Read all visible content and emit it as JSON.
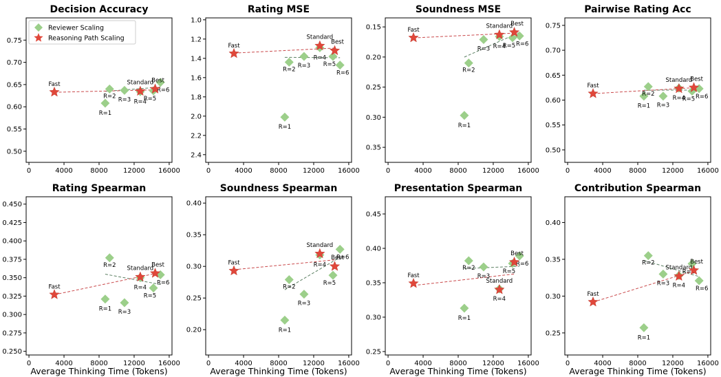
{
  "figure": {
    "xlabel": "Average Thinking Time (Tokens)"
  },
  "legend": {
    "reviewer": "Reviewer Scaling",
    "reasoning": "Reasoning Path Scaling"
  },
  "colors": {
    "reviewer": "#9ccf8a",
    "reasoning": "#e0473a",
    "reviewer_line": "#5b7f62",
    "reasoning_line": "#c9484a"
  },
  "chart_data": [
    {
      "type": "scatter",
      "title": "Decision Accuracy",
      "invert_y": false,
      "xlim": [
        0,
        16000
      ],
      "ylim": [
        0.475,
        0.8
      ],
      "xticks": [
        0,
        4000,
        8000,
        12000,
        16000
      ],
      "yticks": [
        0.5,
        0.55,
        0.6,
        0.65,
        0.7,
        0.75
      ],
      "ytick_labels": [
        "0.50",
        "0.55",
        "0.60",
        "0.65",
        "0.70",
        "0.75"
      ],
      "legend": "upper left",
      "series": [
        {
          "name": "Reviewer Scaling",
          "marker": "diamond",
          "points": [
            {
              "x": 8700,
              "y": 0.608,
              "label": "R=1"
            },
            {
              "x": 9200,
              "y": 0.64,
              "label": "R=2"
            },
            {
              "x": 10900,
              "y": 0.637,
              "label": "R=3"
            },
            {
              "x": 12700,
              "y": 0.634,
              "label": "R=4"
            },
            {
              "x": 14200,
              "y": 0.636,
              "label": "R=5"
            },
            {
              "x": 15000,
              "y": 0.655,
              "label": "R=6"
            }
          ]
        },
        {
          "name": "Reasoning Path Scaling",
          "marker": "star",
          "points": [
            {
              "x": 2900,
              "y": 0.633,
              "label": "Fast"
            },
            {
              "x": 12700,
              "y": 0.635,
              "label": "Standard"
            },
            {
              "x": 14400,
              "y": 0.64,
              "label": "Best"
            }
          ]
        }
      ]
    },
    {
      "type": "scatter",
      "title": "Rating MSE",
      "invert_y": true,
      "xlim": [
        0,
        16000
      ],
      "ylim": [
        0.98,
        2.48
      ],
      "xticks": [
        0,
        4000,
        8000,
        12000,
        16000
      ],
      "yticks": [
        1.0,
        1.2,
        1.4,
        1.6,
        1.8,
        2.0,
        2.2,
        2.4
      ],
      "ytick_labels": [
        "1.0",
        "1.2",
        "1.4",
        "1.6",
        "1.8",
        "2.0",
        "2.2",
        "2.4"
      ],
      "series": [
        {
          "name": "Reviewer Scaling",
          "marker": "diamond",
          "points": [
            {
              "x": 8700,
              "y": 2.01,
              "label": "R=1"
            },
            {
              "x": 9200,
              "y": 1.44,
              "label": "R=2"
            },
            {
              "x": 10900,
              "y": 1.38,
              "label": "R=3"
            },
            {
              "x": 12700,
              "y": 1.29,
              "label": "R=4"
            },
            {
              "x": 14200,
              "y": 1.38,
              "label": "R=5"
            },
            {
              "x": 15000,
              "y": 1.47,
              "label": "R=6"
            }
          ]
        },
        {
          "name": "Reasoning Path Scaling",
          "marker": "star",
          "points": [
            {
              "x": 2900,
              "y": 1.35,
              "label": "Fast"
            },
            {
              "x": 12700,
              "y": 1.27,
              "label": "Standard"
            },
            {
              "x": 14400,
              "y": 1.32,
              "label": "Best"
            }
          ]
        }
      ]
    },
    {
      "type": "scatter",
      "title": "Soundness MSE",
      "invert_y": true,
      "xlim": [
        0,
        16000
      ],
      "ylim": [
        0.135,
        0.375
      ],
      "xticks": [
        0,
        4000,
        8000,
        12000,
        16000
      ],
      "yticks": [
        0.15,
        0.2,
        0.25,
        0.3,
        0.35
      ],
      "ytick_labels": [
        "0.15",
        "0.20",
        "0.25",
        "0.30",
        "0.35"
      ],
      "series": [
        {
          "name": "Reviewer Scaling",
          "marker": "diamond",
          "points": [
            {
              "x": 8700,
              "y": 0.297,
              "label": "R=1"
            },
            {
              "x": 9200,
              "y": 0.21,
              "label": "R=2"
            },
            {
              "x": 10900,
              "y": 0.171,
              "label": "R=3"
            },
            {
              "x": 12700,
              "y": 0.166,
              "label": "R=4"
            },
            {
              "x": 14200,
              "y": 0.168,
              "label": "R=5"
            },
            {
              "x": 15000,
              "y": 0.165,
              "label": "R=6"
            }
          ]
        },
        {
          "name": "Reasoning Path Scaling",
          "marker": "star",
          "points": [
            {
              "x": 2900,
              "y": 0.168,
              "label": "Fast"
            },
            {
              "x": 12700,
              "y": 0.163,
              "label": "Standard"
            },
            {
              "x": 14400,
              "y": 0.159,
              "label": "Best"
            }
          ]
        }
      ]
    },
    {
      "type": "scatter",
      "title": "Pairwise Rating Acc",
      "invert_y": false,
      "xlim": [
        0,
        16000
      ],
      "ylim": [
        0.475,
        0.765
      ],
      "xticks": [
        0,
        4000,
        8000,
        12000,
        16000
      ],
      "yticks": [
        0.5,
        0.55,
        0.6,
        0.65,
        0.7,
        0.75
      ],
      "ytick_labels": [
        "0.50",
        "0.55",
        "0.60",
        "0.65",
        "0.70",
        "0.75"
      ],
      "series": [
        {
          "name": "Reviewer Scaling",
          "marker": "diamond",
          "points": [
            {
              "x": 8700,
              "y": 0.608,
              "label": "R=1"
            },
            {
              "x": 9200,
              "y": 0.627,
              "label": "R=2"
            },
            {
              "x": 10900,
              "y": 0.608,
              "label": "R=3"
            },
            {
              "x": 12700,
              "y": 0.624,
              "label": "R=4"
            },
            {
              "x": 14200,
              "y": 0.618,
              "label": "R=5"
            },
            {
              "x": 15000,
              "y": 0.623,
              "label": "R=6"
            }
          ]
        },
        {
          "name": "Reasoning Path Scaling",
          "marker": "star",
          "points": [
            {
              "x": 2900,
              "y": 0.613,
              "label": "Fast"
            },
            {
              "x": 12700,
              "y": 0.623,
              "label": "Standard"
            },
            {
              "x": 14400,
              "y": 0.625,
              "label": "Best"
            }
          ]
        }
      ]
    },
    {
      "type": "scatter",
      "title": "Rating Spearman",
      "invert_y": false,
      "xlim": [
        0,
        16000
      ],
      "ylim": [
        0.245,
        0.46
      ],
      "xticks": [
        0,
        4000,
        8000,
        12000,
        16000
      ],
      "yticks": [
        0.25,
        0.275,
        0.3,
        0.325,
        0.35,
        0.375,
        0.4,
        0.425,
        0.45
      ],
      "ytick_labels": [
        "0.250",
        "0.275",
        "0.300",
        "0.325",
        "0.350",
        "0.375",
        "0.400",
        "0.425",
        "0.450"
      ],
      "series": [
        {
          "name": "Reviewer Scaling",
          "marker": "diamond",
          "points": [
            {
              "x": 8700,
              "y": 0.321,
              "label": "R=1"
            },
            {
              "x": 9200,
              "y": 0.377,
              "label": "R=2"
            },
            {
              "x": 10900,
              "y": 0.316,
              "label": "R=3"
            },
            {
              "x": 12700,
              "y": 0.35,
              "label": "R=4"
            },
            {
              "x": 14200,
              "y": 0.336,
              "label": "R=5"
            },
            {
              "x": 15000,
              "y": 0.354,
              "label": "R=6"
            }
          ]
        },
        {
          "name": "Reasoning Path Scaling",
          "marker": "star",
          "points": [
            {
              "x": 2900,
              "y": 0.327,
              "label": "Fast"
            },
            {
              "x": 12700,
              "y": 0.351,
              "label": "Standard"
            },
            {
              "x": 14400,
              "y": 0.356,
              "label": "Best"
            }
          ]
        }
      ]
    },
    {
      "type": "scatter",
      "title": "Soundness Spearman",
      "invert_y": false,
      "xlim": [
        0,
        16000
      ],
      "ylim": [
        0.16,
        0.41
      ],
      "xticks": [
        0,
        4000,
        8000,
        12000,
        16000
      ],
      "yticks": [
        0.2,
        0.25,
        0.3,
        0.35,
        0.4
      ],
      "ytick_labels": [
        "0.20",
        "0.25",
        "0.30",
        "0.35",
        "0.40"
      ],
      "series": [
        {
          "name": "Reviewer Scaling",
          "marker": "diamond",
          "points": [
            {
              "x": 8700,
              "y": 0.215,
              "label": "R=1"
            },
            {
              "x": 9200,
              "y": 0.279,
              "label": "R=2"
            },
            {
              "x": 10900,
              "y": 0.256,
              "label": "R=3"
            },
            {
              "x": 12700,
              "y": 0.318,
              "label": "R=4"
            },
            {
              "x": 14200,
              "y": 0.286,
              "label": "R=5"
            },
            {
              "x": 15000,
              "y": 0.327,
              "label": "R=6"
            }
          ]
        },
        {
          "name": "Reasoning Path Scaling",
          "marker": "star",
          "points": [
            {
              "x": 2900,
              "y": 0.293,
              "label": "Fast"
            },
            {
              "x": 12700,
              "y": 0.32,
              "label": "Standard"
            },
            {
              "x": 14400,
              "y": 0.3,
              "label": "Best"
            }
          ]
        }
      ]
    },
    {
      "type": "scatter",
      "title": "Presentation Spearman",
      "invert_y": false,
      "xlim": [
        0,
        16000
      ],
      "ylim": [
        0.245,
        0.475
      ],
      "xticks": [
        0,
        4000,
        8000,
        12000,
        16000
      ],
      "yticks": [
        0.25,
        0.3,
        0.35,
        0.4,
        0.45
      ],
      "ytick_labels": [
        "0.25",
        "0.30",
        "0.35",
        "0.40",
        "0.45"
      ],
      "series": [
        {
          "name": "Reviewer Scaling",
          "marker": "diamond",
          "points": [
            {
              "x": 8700,
              "y": 0.313,
              "label": "R=1"
            },
            {
              "x": 9200,
              "y": 0.382,
              "label": "R=2"
            },
            {
              "x": 10900,
              "y": 0.373,
              "label": "R=3"
            },
            {
              "x": 12700,
              "y": 0.341,
              "label": "R=4"
            },
            {
              "x": 14200,
              "y": 0.378,
              "label": "R=5"
            },
            {
              "x": 15000,
              "y": 0.389,
              "label": "R=6"
            }
          ]
        },
        {
          "name": "Reasoning Path Scaling",
          "marker": "star",
          "points": [
            {
              "x": 2900,
              "y": 0.349,
              "label": "Fast"
            },
            {
              "x": 12700,
              "y": 0.34,
              "label": "Standard"
            },
            {
              "x": 14400,
              "y": 0.38,
              "label": "Best"
            }
          ]
        }
      ]
    },
    {
      "type": "scatter",
      "title": "Contribution Spearman",
      "invert_y": false,
      "xlim": [
        0,
        16000
      ],
      "ylim": [
        0.22,
        0.435
      ],
      "xticks": [
        0,
        4000,
        8000,
        12000,
        16000
      ],
      "yticks": [
        0.25,
        0.3,
        0.35,
        0.4
      ],
      "ytick_labels": [
        "0.25",
        "0.30",
        "0.35",
        "0.40"
      ],
      "series": [
        {
          "name": "Reviewer Scaling",
          "marker": "diamond",
          "points": [
            {
              "x": 8700,
              "y": 0.257,
              "label": "R=1"
            },
            {
              "x": 9200,
              "y": 0.355,
              "label": "R=2"
            },
            {
              "x": 10900,
              "y": 0.33,
              "label": "R=3"
            },
            {
              "x": 12700,
              "y": 0.328,
              "label": "R=4"
            },
            {
              "x": 14200,
              "y": 0.344,
              "label": "R=5"
            },
            {
              "x": 15000,
              "y": 0.321,
              "label": "R=6"
            }
          ]
        },
        {
          "name": "Reasoning Path Scaling",
          "marker": "star",
          "points": [
            {
              "x": 2900,
              "y": 0.292,
              "label": "Fast"
            },
            {
              "x": 12700,
              "y": 0.327,
              "label": "Standard"
            },
            {
              "x": 14400,
              "y": 0.335,
              "label": "Best"
            }
          ]
        }
      ]
    }
  ]
}
